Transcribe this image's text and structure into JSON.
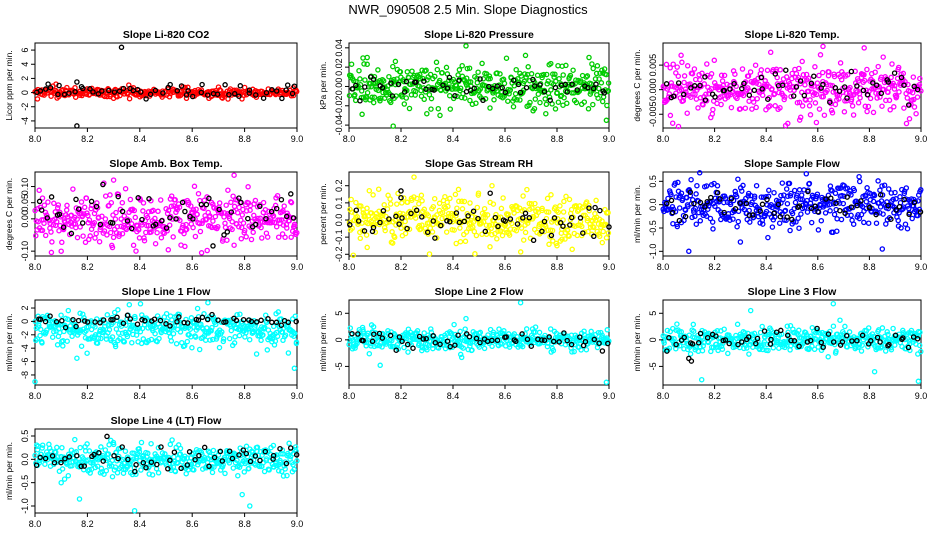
{
  "figure": {
    "title": "NWR_090508  2.5 Min. Slope Diagnostics"
  },
  "chart_data": [
    {
      "type": "scatter",
      "title": "Slope Li-820 CO2",
      "xlabel": "",
      "ylabel": "Licor ppm per min.",
      "xlim": [
        8.0,
        9.0
      ],
      "ylim": [
        -5,
        7
      ],
      "x_ticks": [
        "8.0",
        "8.2",
        "8.4",
        "8.6",
        "8.8",
        "9.0"
      ],
      "y_ticks": [
        -4,
        -2,
        0,
        2,
        4,
        6
      ],
      "y_tick_labels": [
        "-4",
        "-2",
        "0",
        "2",
        "4",
        "6"
      ],
      "grid": false,
      "series": [
        {
          "color": "#ff0000",
          "n": 300,
          "center": 0.0,
          "spread": 0.35,
          "outliers": [
            [
              8.08,
              1.2
            ],
            [
              8.3,
              -0.8
            ]
          ]
        },
        {
          "color": "#000000",
          "n": 55,
          "center": 0.2,
          "spread": 0.5,
          "outliers": [
            [
              8.33,
              6.4
            ],
            [
              8.16,
              -4.7
            ],
            [
              8.16,
              1.5
            ],
            [
              8.05,
              1.2
            ],
            [
              8.99,
              0.9
            ]
          ]
        }
      ]
    },
    {
      "type": "scatter",
      "title": "Slope Li-820 Pressure",
      "xlabel": "",
      "ylabel": "kPa per min.",
      "xlim": [
        8.0,
        9.0
      ],
      "ylim": [
        -0.043,
        0.045
      ],
      "x_ticks": [
        "8.0",
        "8.2",
        "8.4",
        "8.6",
        "8.8",
        "9.0"
      ],
      "y_ticks": [
        -0.04,
        -0.02,
        0.0,
        0.02,
        0.04
      ],
      "y_tick_labels": [
        "-0.04",
        "-0.02",
        "0.00",
        "0.02",
        "0.04"
      ],
      "grid": false,
      "series": [
        {
          "color": "#00cc00",
          "n": 420,
          "center": 0.0,
          "spread": 0.011,
          "outliers": [
            [
              8.17,
              -0.041
            ],
            [
              8.45,
              0.042
            ],
            [
              8.35,
              -0.03
            ],
            [
              8.99,
              -0.035
            ],
            [
              8.07,
              0.03
            ]
          ]
        },
        {
          "color": "#000000",
          "n": 55,
          "center": 0.0,
          "spread": 0.006,
          "outliers": []
        }
      ]
    },
    {
      "type": "scatter",
      "title": "Slope Li-820 Temp.",
      "xlabel": "",
      "ylabel": "degrees C per min.",
      "xlim": [
        8.0,
        9.0
      ],
      "ylim": [
        -0.0078,
        0.0095
      ],
      "x_ticks": [
        "8.0",
        "8.2",
        "8.4",
        "8.6",
        "8.8",
        "9.0"
      ],
      "y_ticks": [
        -0.005,
        0.0,
        0.005
      ],
      "y_tick_labels": [
        "-0.005",
        "0.000",
        "0.005"
      ],
      "grid": false,
      "series": [
        {
          "color": "#ff00ff",
          "n": 420,
          "center": 0.0,
          "spread": 0.0025,
          "outliers": [
            [
              8.07,
              0.007
            ],
            [
              8.06,
              -0.0075
            ],
            [
              8.62,
              0.0088
            ],
            [
              8.78,
              0.0085
            ],
            [
              8.53,
              -0.0062
            ]
          ]
        },
        {
          "color": "#000000",
          "n": 55,
          "center": 0.0005,
          "spread": 0.0015,
          "outliers": []
        }
      ]
    },
    {
      "type": "scatter",
      "title": "Slope Amb. Box Temp.",
      "xlabel": "",
      "ylabel": "degrees C per min.",
      "xlim": [
        8.0,
        9.0
      ],
      "ylim": [
        -0.115,
        0.145
      ],
      "x_ticks": [
        "8.0",
        "8.2",
        "8.4",
        "8.6",
        "8.8",
        "9.0"
      ],
      "y_ticks": [
        -0.1,
        0.0,
        0.05,
        0.1
      ],
      "y_tick_labels": [
        "-0.10",
        "0.00",
        "0.05",
        "0.10"
      ],
      "grid": false,
      "series": [
        {
          "color": "#ff00ff",
          "n": 420,
          "center": 0.0,
          "spread": 0.04,
          "outliers": [
            [
              8.76,
              0.135
            ],
            [
              8.1,
              -0.1
            ],
            [
              8.3,
              0.12
            ]
          ]
        },
        {
          "color": "#000000",
          "n": 55,
          "center": 0.02,
          "spread": 0.04,
          "outliers": []
        }
      ]
    },
    {
      "type": "scatter",
      "title": "Slope Gas Stream RH",
      "xlabel": "",
      "ylabel": "percent per min.",
      "xlim": [
        8.0,
        9.0
      ],
      "ylim": [
        -0.21,
        0.28
      ],
      "x_ticks": [
        "8.0",
        "8.2",
        "8.4",
        "8.6",
        "8.8",
        "9.0"
      ],
      "y_ticks": [
        -0.2,
        -0.1,
        0.0,
        0.1,
        0.2
      ],
      "y_tick_labels": [
        "-0.2",
        "-0.1",
        "0.0",
        "0.1",
        "0.2"
      ],
      "grid": false,
      "series": [
        {
          "color": "#ffff00",
          "n": 420,
          "center": 0.0,
          "spread": 0.07,
          "outliers": [
            [
              8.25,
              0.25
            ],
            [
              8.07,
              -0.16
            ],
            [
              8.55,
              0.2
            ],
            [
              8.8,
              -0.15
            ]
          ]
        },
        {
          "color": "#000000",
          "n": 55,
          "center": 0.0,
          "spread": 0.06,
          "outliers": [
            [
              8.2,
              0.17
            ],
            [
              8.2,
              0.13
            ]
          ]
        }
      ]
    },
    {
      "type": "scatter",
      "title": "Slope Sample Flow",
      "xlabel": "",
      "ylabel": "ml/min per min.",
      "xlim": [
        8.0,
        9.0
      ],
      "ylim": [
        -1.1,
        0.7
      ],
      "x_ticks": [
        "8.0",
        "8.2",
        "8.4",
        "8.6",
        "8.8",
        "9.0"
      ],
      "y_ticks": [
        -1.0,
        -0.5,
        0.0,
        0.5
      ],
      "y_tick_labels": [
        "-1.0",
        "-0.5",
        "0.0",
        "0.5"
      ],
      "grid": false,
      "series": [
        {
          "color": "#0000ff",
          "n": 420,
          "center": 0.0,
          "spread": 0.25,
          "outliers": [
            [
              8.1,
              -1.0
            ],
            [
              8.76,
              0.6
            ],
            [
              8.85,
              -0.95
            ],
            [
              8.3,
              -0.8
            ]
          ]
        },
        {
          "color": "#000000",
          "n": 55,
          "center": -0.05,
          "spread": 0.15,
          "outliers": []
        }
      ]
    },
    {
      "type": "scatter",
      "title": "Slope Line 1 Flow",
      "xlabel": "",
      "ylabel": "ml/min per min.",
      "xlim": [
        8.0,
        9.0
      ],
      "ylim": [
        -9.5,
        3.2
      ],
      "x_ticks": [
        "8.0",
        "8.2",
        "8.4",
        "8.6",
        "8.8",
        "9.0"
      ],
      "y_ticks": [
        -8,
        -6,
        -4,
        -2,
        0,
        2
      ],
      "y_tick_labels": [
        "-8",
        "-6",
        "-4",
        "-2",
        "0",
        "2"
      ],
      "grid": false,
      "series": [
        {
          "color": "#00ffff",
          "n": 420,
          "center": -1.2,
          "spread": 1.2,
          "outliers": [
            [
              8.0,
              -9.0
            ],
            [
              8.99,
              -7.0
            ],
            [
              8.16,
              -5.5
            ],
            [
              8.66,
              2.8
            ],
            [
              8.36,
              2.5
            ]
          ]
        },
        {
          "color": "#000000",
          "n": 55,
          "center": 0.1,
          "spread": 0.4,
          "outliers": []
        }
      ]
    },
    {
      "type": "scatter",
      "title": "Slope Line 2 Flow",
      "xlabel": "",
      "ylabel": "ml/min per min.",
      "xlim": [
        8.0,
        9.0
      ],
      "ylim": [
        -8.5,
        7.5
      ],
      "x_ticks": [
        "8.0",
        "8.2",
        "8.4",
        "8.6",
        "8.8",
        "9.0"
      ],
      "y_ticks": [
        -5,
        0,
        5
      ],
      "y_tick_labels": [
        "-5",
        "0",
        "5"
      ],
      "grid": false,
      "series": [
        {
          "color": "#00ffff",
          "n": 420,
          "center": 0.0,
          "spread": 1.0,
          "outliers": [
            [
              8.66,
              7.0
            ],
            [
              8.99,
              -8.0
            ],
            [
              8.12,
              -4.8
            ],
            [
              8.45,
              4.0
            ]
          ]
        },
        {
          "color": "#000000",
          "n": 55,
          "center": 0.0,
          "spread": 0.8,
          "outliers": []
        }
      ]
    },
    {
      "type": "scatter",
      "title": "Slope Line 3 Flow",
      "xlabel": "",
      "ylabel": "ml/min per min.",
      "xlim": [
        8.0,
        9.0
      ],
      "ylim": [
        -8.5,
        7.5
      ],
      "x_ticks": [
        "8.0",
        "8.2",
        "8.4",
        "8.6",
        "8.8",
        "9.0"
      ],
      "y_ticks": [
        -5,
        0,
        5
      ],
      "y_tick_labels": [
        "-5",
        "0",
        "5"
      ],
      "grid": false,
      "series": [
        {
          "color": "#00ffff",
          "n": 420,
          "center": 0.0,
          "spread": 1.1,
          "outliers": [
            [
              8.15,
              -7.5
            ],
            [
              8.99,
              -7.8
            ],
            [
              8.66,
              6.8
            ],
            [
              8.34,
              5.5
            ],
            [
              8.82,
              -6.0
            ]
          ]
        },
        {
          "color": "#000000",
          "n": 55,
          "center": -0.2,
          "spread": 0.9,
          "outliers": [
            [
              8.11,
              -4.0
            ],
            [
              8.1,
              -3.5
            ]
          ]
        }
      ]
    },
    {
      "type": "scatter",
      "title": "Slope Line 4 (LT) Flow",
      "xlabel": "",
      "ylabel": "ml/min per min.",
      "xlim": [
        8.0,
        9.0
      ],
      "ylim": [
        -1.15,
        0.65
      ],
      "x_ticks": [
        "8.0",
        "8.2",
        "8.4",
        "8.6",
        "8.8",
        "9.0"
      ],
      "y_ticks": [
        -1.0,
        -0.5,
        0.0,
        0.5
      ],
      "y_tick_labels": [
        "-1.0",
        "-0.5",
        "0.0",
        "0.5"
      ],
      "grid": false,
      "series": [
        {
          "color": "#00ffff",
          "n": 420,
          "center": 0.0,
          "spread": 0.16,
          "outliers": [
            [
              8.38,
              -1.1
            ],
            [
              8.82,
              -1.0
            ],
            [
              8.17,
              -0.85
            ],
            [
              8.1,
              -0.5
            ]
          ]
        },
        {
          "color": "#000000",
          "n": 55,
          "center": 0.02,
          "spread": 0.12,
          "outliers": []
        }
      ]
    }
  ]
}
